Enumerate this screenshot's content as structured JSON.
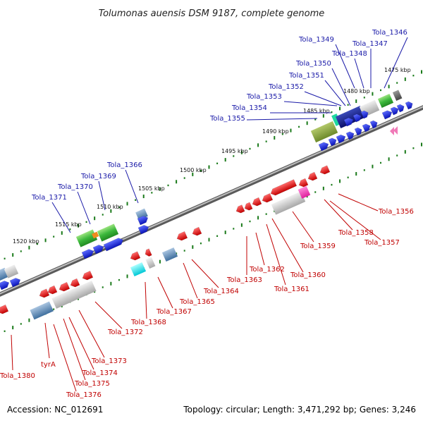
{
  "title": "Tolumonas auensis DSM 9187, complete genome",
  "footer": {
    "accession": "Accession: NC_012691",
    "summary": "Topology: circular; Length: 3,471,292 bp; Genes: 3,246"
  },
  "scale_labels": [
    "1475 kbp",
    "1480 kbp",
    "1485 kbp",
    "1490 kbp",
    "1495 kbp",
    "1500 kbp",
    "1505 kbp",
    "1510 kbp",
    "1515 kbp",
    "1520 kbp"
  ],
  "gene_labels_forward": [
    "Tola_1346",
    "Tola_1347",
    "Tola_1348",
    "Tola_1349",
    "Tola_1350",
    "Tola_1351",
    "Tola_1352",
    "Tola_1353",
    "Tola_1354",
    "Tola_1355",
    "Tola_1366",
    "Tola_1369",
    "Tola_1370",
    "Tola_1371"
  ],
  "gene_labels_reverse": [
    "Tola_1356",
    "Tola_1357",
    "Tola_1358",
    "Tola_1359",
    "Tola_1360",
    "Tola_1361",
    "Tola_1362",
    "Tola_1363",
    "Tola_1364",
    "Tola_1365",
    "Tola_1367",
    "Tola_1368",
    "Tola_1372",
    "Tola_1373",
    "Tola_1374",
    "Tola_1375",
    "Tola_1376",
    "tyrA",
    "Tola_1380"
  ],
  "colors": {
    "forward_gene": "#1a1adb",
    "reverse_gene": "#e01010",
    "forward_label": "#1a1aa8",
    "reverse_label": "#c00000",
    "scale_ticks": "#1a7a1a",
    "backbone": "#888888"
  }
}
